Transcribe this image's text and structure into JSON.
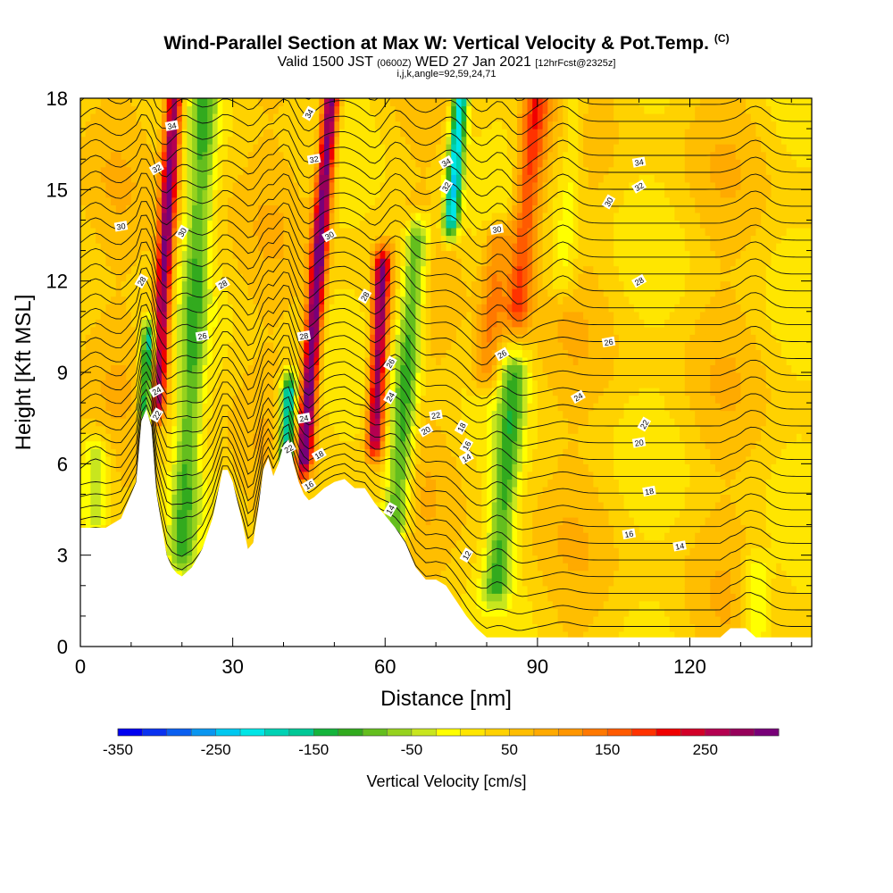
{
  "title": {
    "main": "Wind-Parallel Section at Max W: Vertical Velocity & Pot.Temp.",
    "badge": "(C)",
    "valid_prefix": "Valid 1500 JST",
    "valid_utc": "(0600Z)",
    "valid_date": "WED 27 Jan 2021",
    "forecast": "[12hrFcst@2325z]",
    "indices": "i,j,k,angle=92,59,24,71"
  },
  "chart_data": {
    "type": "heatmap",
    "xlabel": "Distance [nm]",
    "ylabel": "Height [Kft MSL]",
    "xlim": [
      0,
      144
    ],
    "ylim": [
      0,
      18
    ],
    "x_ticks": [
      0,
      30,
      60,
      90,
      120
    ],
    "y_ticks": [
      0,
      3,
      6,
      9,
      12,
      15,
      18
    ],
    "colorbar": {
      "label": "Vertical Velocity [cm/s]",
      "min": -350,
      "max": 300,
      "step": 25,
      "tick_values": [
        -350,
        -250,
        -150,
        -50,
        50,
        150,
        250
      ],
      "colors": [
        "#0000f0",
        "#0a32f0",
        "#0a5ff0",
        "#0a96f0",
        "#00c8f0",
        "#00e6e6",
        "#00d2b4",
        "#00c896",
        "#14b43c",
        "#32aa1e",
        "#64be1e",
        "#96d21e",
        "#c8e61e",
        "#ffff00",
        "#ffe600",
        "#ffd200",
        "#ffbe00",
        "#ffaa00",
        "#ff9600",
        "#ff7800",
        "#ff5a00",
        "#ff3200",
        "#f00000",
        "#d20028",
        "#b40050",
        "#96005a",
        "#780078"
      ]
    },
    "terrain_profile": {
      "x": [
        0,
        5,
        8,
        11,
        12,
        13,
        14,
        15,
        16,
        17,
        18,
        19,
        20,
        22,
        24,
        26,
        28,
        29,
        30,
        32,
        33,
        34,
        35,
        36,
        37,
        38,
        39,
        40,
        41,
        42,
        43,
        44,
        45,
        46,
        48,
        50,
        52,
        54,
        56,
        58,
        60,
        62,
        64,
        66,
        68,
        70,
        72,
        74,
        76,
        78,
        80,
        82,
        85,
        90,
        100,
        110,
        120,
        126,
        128,
        131,
        133,
        135,
        138,
        140,
        142,
        144
      ],
      "height_kft": [
        3.9,
        3.9,
        4.2,
        5.4,
        7.4,
        7.8,
        7.2,
        5.0,
        4.0,
        3.0,
        2.6,
        2.4,
        2.3,
        2.6,
        3.2,
        4.2,
        5.8,
        5.8,
        5.4,
        4.0,
        3.2,
        3.4,
        4.5,
        5.8,
        6.2,
        5.6,
        6.0,
        6.6,
        6.8,
        6.0,
        5.4,
        5.0,
        4.8,
        4.9,
        5.2,
        5.4,
        5.5,
        5.2,
        5.2,
        4.7,
        4.3,
        3.9,
        3.4,
        2.6,
        2.2,
        2.2,
        2.0,
        1.5,
        1.0,
        0.6,
        0.3,
        0.3,
        0.3,
        0.3,
        0.3,
        0.3,
        0.3,
        0.3,
        0.6,
        0.6,
        0.3,
        0.3,
        0.3,
        0.3,
        0.3,
        0.3
      ]
    },
    "vertical_velocity_cores": [
      {
        "x": 15.0,
        "z_bottom": 8.0,
        "z_top": 18.0,
        "tilt": 0.35,
        "w": 280
      },
      {
        "x": 44.0,
        "z_bottom": 6.2,
        "z_top": 18.0,
        "tilt": 0.45,
        "w": 300
      },
      {
        "x": 58.0,
        "z_bottom": 6.8,
        "z_top": 12.5,
        "tilt": 0.25,
        "w": 260
      },
      {
        "x": 86.0,
        "z_bottom": 11.0,
        "z_top": 18.0,
        "tilt": 0.55,
        "w": 150
      },
      {
        "x": 80.0,
        "z_bottom": 9.0,
        "z_top": 13.5,
        "tilt": 0.5,
        "w": 100
      },
      {
        "x": 13.0,
        "z_bottom": 7.8,
        "z_top": 10.2,
        "tilt": 0.3,
        "w": -250
      },
      {
        "x": 40.5,
        "z_bottom": 6.0,
        "z_top": 8.4,
        "tilt": 0.25,
        "w": -250
      },
      {
        "x": 73.0,
        "z_bottom": 14.0,
        "z_top": 18.0,
        "tilt": 0.45,
        "w": -260
      },
      {
        "x": 20.0,
        "z_bottom": 3.0,
        "z_top": 18.0,
        "tilt": 0.3,
        "w": -120
      },
      {
        "x": 62.0,
        "z_bottom": 4.0,
        "z_top": 13.5,
        "tilt": 0.45,
        "w": -160
      },
      {
        "x": 82.0,
        "z_bottom": 2.0,
        "z_top": 9.0,
        "tilt": 0.5,
        "w": -130
      },
      {
        "x": 3.0,
        "z_bottom": 4.0,
        "z_top": 6.5,
        "tilt": 0.0,
        "w": -80
      },
      {
        "x": 133.0,
        "z_bottom": 0.5,
        "z_top": 2.5,
        "tilt": 0.0,
        "w": -80
      },
      {
        "x": 95.0,
        "z_bottom": 12.0,
        "z_top": 18.0,
        "tilt": 0.4,
        "w": -60
      }
    ],
    "theta_contours": [
      {
        "value": "12",
        "label_at": {
          "x": 76,
          "z": 3.0
        }
      },
      {
        "value": "14",
        "label_at": {
          "x": 76,
          "z": 6.2
        }
      },
      {
        "value": "14",
        "label_at": {
          "x": 118,
          "z": 3.3
        }
      },
      {
        "value": "14",
        "label_at": {
          "x": 61,
          "z": 4.5
        }
      },
      {
        "value": "16",
        "label_at": {
          "x": 45,
          "z": 5.3
        }
      },
      {
        "value": "16",
        "label_at": {
          "x": 108,
          "z": 3.7
        }
      },
      {
        "value": "16",
        "label_at": {
          "x": 76,
          "z": 6.6
        }
      },
      {
        "value": "18",
        "label_at": {
          "x": 47,
          "z": 6.3
        }
      },
      {
        "value": "18",
        "label_at": {
          "x": 112,
          "z": 5.1
        }
      },
      {
        "value": "18",
        "label_at": {
          "x": 75,
          "z": 7.2
        }
      },
      {
        "value": "20",
        "label_at": {
          "x": 68,
          "z": 7.1
        }
      },
      {
        "value": "20",
        "label_at": {
          "x": 110,
          "z": 6.7
        }
      },
      {
        "value": "22",
        "label_at": {
          "x": 15,
          "z": 7.6
        }
      },
      {
        "value": "22",
        "label_at": {
          "x": 41,
          "z": 6.5
        }
      },
      {
        "value": "22",
        "label_at": {
          "x": 70,
          "z": 7.6
        }
      },
      {
        "value": "22",
        "label_at": {
          "x": 111,
          "z": 7.3
        }
      },
      {
        "value": "24",
        "label_at": {
          "x": 15,
          "z": 8.4
        }
      },
      {
        "value": "24",
        "label_at": {
          "x": 44,
          "z": 7.5
        }
      },
      {
        "value": "24",
        "label_at": {
          "x": 61,
          "z": 8.2
        }
      },
      {
        "value": "24",
        "label_at": {
          "x": 98,
          "z": 8.2
        }
      },
      {
        "value": "26",
        "label_at": {
          "x": 24,
          "z": 10.2
        }
      },
      {
        "value": "26",
        "label_at": {
          "x": 61,
          "z": 9.3
        }
      },
      {
        "value": "26",
        "label_at": {
          "x": 83,
          "z": 9.6
        }
      },
      {
        "value": "26",
        "label_at": {
          "x": 104,
          "z": 10.0
        }
      },
      {
        "value": "28",
        "label_at": {
          "x": 12,
          "z": 12.0
        }
      },
      {
        "value": "28",
        "label_at": {
          "x": 28,
          "z": 11.9
        }
      },
      {
        "value": "28",
        "label_at": {
          "x": 44,
          "z": 10.2
        }
      },
      {
        "value": "28",
        "label_at": {
          "x": 56,
          "z": 11.5
        }
      },
      {
        "value": "28",
        "label_at": {
          "x": 110,
          "z": 12.0
        }
      },
      {
        "value": "30",
        "label_at": {
          "x": 8,
          "z": 13.8
        }
      },
      {
        "value": "30",
        "label_at": {
          "x": 20,
          "z": 13.6
        }
      },
      {
        "value": "30",
        "label_at": {
          "x": 49,
          "z": 13.5
        }
      },
      {
        "value": "30",
        "label_at": {
          "x": 82,
          "z": 13.7
        }
      },
      {
        "value": "30",
        "label_at": {
          "x": 104,
          "z": 14.6
        }
      },
      {
        "value": "32",
        "label_at": {
          "x": 15,
          "z": 15.7
        }
      },
      {
        "value": "32",
        "label_at": {
          "x": 46,
          "z": 16.0
        }
      },
      {
        "value": "32",
        "label_at": {
          "x": 72,
          "z": 15.1
        }
      },
      {
        "value": "32",
        "label_at": {
          "x": 110,
          "z": 15.1
        }
      },
      {
        "value": "34",
        "label_at": {
          "x": 18,
          "z": 17.1
        }
      },
      {
        "value": "34",
        "label_at": {
          "x": 45,
          "z": 17.5
        }
      },
      {
        "value": "34",
        "label_at": {
          "x": 72,
          "z": 15.9
        }
      },
      {
        "value": "34",
        "label_at": {
          "x": 110,
          "z": 15.9
        }
      }
    ]
  }
}
